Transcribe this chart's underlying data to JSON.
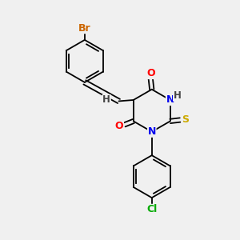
{
  "background_color": "#f0f0f0",
  "bond_color": "#000000",
  "atom_colors": {
    "Br": "#cc6600",
    "Cl": "#00aa00",
    "O": "#ff0000",
    "N": "#0000ee",
    "S": "#ccaa00",
    "H": "#444444",
    "C": "#000000"
  },
  "lw": 1.3,
  "font_size": 9
}
